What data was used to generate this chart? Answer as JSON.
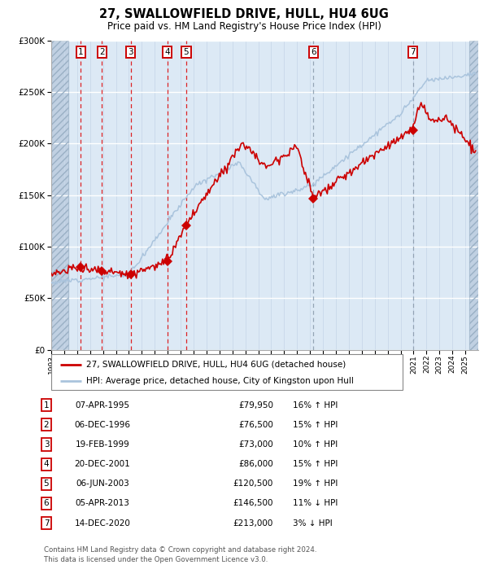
{
  "title": "27, SWALLOWFIELD DRIVE, HULL, HU4 6UG",
  "subtitle": "Price paid vs. HM Land Registry's House Price Index (HPI)",
  "transactions": [
    {
      "num": 1,
      "date": "07-APR-1995",
      "price": 79950,
      "pct": "16%",
      "dir": "↑"
    },
    {
      "num": 2,
      "date": "06-DEC-1996",
      "price": 76500,
      "pct": "15%",
      "dir": "↑"
    },
    {
      "num": 3,
      "date": "19-FEB-1999",
      "price": 73000,
      "pct": "10%",
      "dir": "↑"
    },
    {
      "num": 4,
      "date": "20-DEC-2001",
      "price": 86000,
      "pct": "15%",
      "dir": "↑"
    },
    {
      "num": 5,
      "date": "06-JUN-2003",
      "price": 120500,
      "pct": "19%",
      "dir": "↑"
    },
    {
      "num": 6,
      "date": "05-APR-2013",
      "price": 146500,
      "pct": "11%",
      "dir": "↓"
    },
    {
      "num": 7,
      "date": "14-DEC-2020",
      "price": 213000,
      "pct": "3%",
      "dir": "↓"
    }
  ],
  "trans_x": [
    1995.27,
    1996.92,
    1999.13,
    2001.97,
    2003.43,
    2013.26,
    2020.96
  ],
  "trans_y": [
    79950,
    76500,
    73000,
    86000,
    120500,
    146500,
    213000
  ],
  "ylim": [
    0,
    300000
  ],
  "xlim": [
    1993.0,
    2026.0
  ],
  "ylabel_ticks": [
    0,
    50000,
    100000,
    150000,
    200000,
    250000,
    300000
  ],
  "xticks": [
    1993,
    1994,
    1995,
    1996,
    1997,
    1998,
    1999,
    2000,
    2001,
    2002,
    2003,
    2004,
    2005,
    2006,
    2007,
    2008,
    2009,
    2010,
    2011,
    2012,
    2013,
    2014,
    2015,
    2016,
    2017,
    2018,
    2019,
    2020,
    2021,
    2022,
    2023,
    2024,
    2025
  ],
  "hpi_line_color": "#aac4dd",
  "price_line_color": "#cc0000",
  "dot_color": "#cc0000",
  "bg_chart": "#dce9f5",
  "bg_hatch_color": "#c0d0e2",
  "vline_color_red": "#dd0000",
  "vline_color_grey": "#8899aa",
  "legend_line1": "27, SWALLOWFIELD DRIVE, HULL, HU4 6UG (detached house)",
  "legend_line2": "HPI: Average price, detached house, City of Kingston upon Hull",
  "footer1": "Contains HM Land Registry data © Crown copyright and database right 2024.",
  "footer2": "This data is licensed under the Open Government Licence v3.0.",
  "hatch_left_end": 1994.3,
  "hatch_right_start": 2025.3
}
